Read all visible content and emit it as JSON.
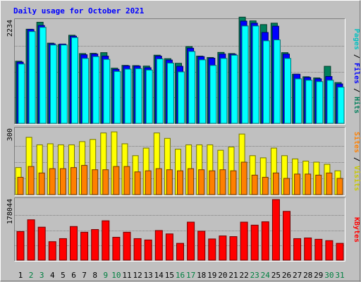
{
  "chart_data": [
    {
      "type": "bar",
      "title": "Daily usage for October 2021",
      "categories": [
        "1",
        "2",
        "3",
        "4",
        "5",
        "6",
        "7",
        "8",
        "9",
        "10",
        "11",
        "12",
        "13",
        "14",
        "15",
        "16",
        "17",
        "18",
        "19",
        "20",
        "21",
        "22",
        "23",
        "24",
        "25",
        "26",
        "27",
        "28",
        "29",
        "30",
        "31"
      ],
      "weekend_days": [
        "2",
        "3",
        "9",
        "10",
        "16",
        "17",
        "23",
        "24",
        "30",
        "31"
      ],
      "ylim": [
        0,
        2234
      ],
      "ytick_label": "2234",
      "series": [
        {
          "name": "Hits",
          "color": "#00805c",
          "values": [
            1340,
            2030,
            2180,
            1730,
            1700,
            1900,
            1505,
            1510,
            1525,
            1190,
            1250,
            1245,
            1235,
            1470,
            1395,
            1295,
            1655,
            1450,
            1420,
            1530,
            1505,
            2290,
            2210,
            2130,
            2160,
            1525,
            1060,
            1005,
            980,
            1230,
            880
          ]
        },
        {
          "name": "Files",
          "color": "#0000ff",
          "values": [
            1320,
            2025,
            2110,
            1715,
            1710,
            1880,
            1480,
            1495,
            1450,
            1165,
            1240,
            1235,
            1200,
            1450,
            1365,
            1230,
            1620,
            1440,
            1405,
            1495,
            1490,
            2205,
            2160,
            1960,
            2095,
            1495,
            1060,
            990,
            960,
            1010,
            850
          ]
        },
        {
          "name": "Pages",
          "color": "#00ffff",
          "values": [
            1280,
            1980,
            2070,
            1690,
            1690,
            1850,
            1400,
            1440,
            1380,
            1120,
            1170,
            1180,
            1150,
            1390,
            1300,
            1110,
            1550,
            1370,
            1250,
            1400,
            1470,
            2100,
            2100,
            1780,
            1800,
            1400,
            960,
            930,
            900,
            930,
            780
          ]
        }
      ]
    },
    {
      "type": "bar",
      "categories": [
        "1",
        "2",
        "3",
        "4",
        "5",
        "6",
        "7",
        "8",
        "9",
        "10",
        "11",
        "12",
        "13",
        "14",
        "15",
        "16",
        "17",
        "18",
        "19",
        "20",
        "21",
        "22",
        "23",
        "24",
        "25",
        "26",
        "27",
        "28",
        "29",
        "30",
        "31"
      ],
      "ylim": [
        0,
        300
      ],
      "ytick_label": "300",
      "series": [
        {
          "name": "Visits",
          "color": "#ffff00",
          "values": [
            125,
            265,
            230,
            235,
            230,
            230,
            245,
            255,
            285,
            290,
            235,
            180,
            215,
            285,
            260,
            210,
            230,
            230,
            230,
            205,
            220,
            280,
            180,
            170,
            215,
            180,
            165,
            155,
            150,
            140,
            110
          ]
        },
        {
          "name": "Sites",
          "color": "#ff8000",
          "values": [
            80,
            130,
            100,
            120,
            120,
            125,
            135,
            115,
            115,
            130,
            130,
            105,
            110,
            120,
            115,
            110,
            120,
            115,
            110,
            115,
            110,
            150,
            90,
            80,
            100,
            75,
            95,
            95,
            90,
            100,
            75
          ]
        }
      ]
    },
    {
      "type": "bar",
      "categories": [
        "1",
        "2",
        "3",
        "4",
        "5",
        "6",
        "7",
        "8",
        "9",
        "10",
        "11",
        "12",
        "13",
        "14",
        "15",
        "16",
        "17",
        "18",
        "19",
        "20",
        "21",
        "22",
        "23",
        "24",
        "25",
        "26",
        "27",
        "28",
        "29",
        "30",
        "31"
      ],
      "ylim": [
        0,
        178044
      ],
      "ytick_label": "178044",
      "series": [
        {
          "name": "KBytes",
          "color": "#ff0000",
          "values": [
            85000,
            120000,
            98000,
            55000,
            64000,
            100000,
            83000,
            91000,
            117000,
            68000,
            83000,
            64000,
            60000,
            88000,
            78000,
            50000,
            113000,
            86000,
            63000,
            72000,
            70000,
            113000,
            104000,
            114000,
            180000,
            145000,
            64000,
            66000,
            62000,
            58000,
            50000
          ]
        }
      ]
    }
  ],
  "legends": {
    "top": [
      {
        "label": "Pages",
        "color": "#00c0c0"
      },
      {
        "label": "Files",
        "color": "#0000ff"
      },
      {
        "label": "Hits",
        "color": "#00805c"
      }
    ],
    "middle": [
      {
        "label": "Sites",
        "color": "#ff8000"
      },
      {
        "label": "Visits",
        "color": "#c8c800"
      }
    ],
    "bottom": [
      {
        "label": "KBytes",
        "color": "#ff0000"
      }
    ],
    "separator": " / "
  },
  "colors": {
    "background": "#c0c0c0",
    "title": "#0000ff",
    "weekday_label": "#000000",
    "weekend_label": "#008040"
  }
}
